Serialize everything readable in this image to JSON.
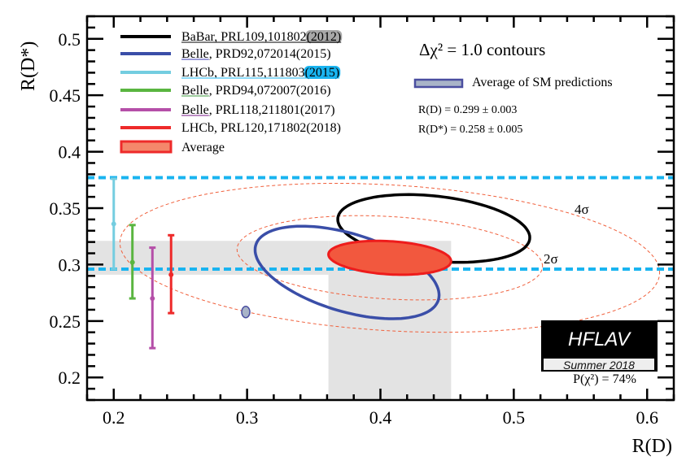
{
  "chart_data": {
    "type": "scatter",
    "xlabel": "R(D)",
    "ylabel": "R(D*)",
    "xlim": [
      0.18,
      0.62
    ],
    "ylim": [
      0.18,
      0.52
    ],
    "xticks": [
      "0.2",
      "0.3",
      "0.4",
      "0.5",
      "0.6"
    ],
    "yticks": [
      "0.2",
      "0.25",
      "0.3",
      "0.35",
      "0.4",
      "0.45",
      "0.5"
    ],
    "grid": false,
    "legend_placement": "top-left",
    "legend": [
      {
        "main": "BaBar, PRL109,101802",
        "year": "(2012)",
        "color": "#000000",
        "underline": "all",
        "highlight": "#a8a8a8"
      },
      {
        "main": "Belle",
        "rest": ", PRD92,072014(2015)",
        "color": "#3a4ea8",
        "underline": "main",
        "underline_color": "#3a3ab0"
      },
      {
        "main": "LHCb, PRL115,111803",
        "year": "(2015)",
        "color": "#74cde0",
        "underline": "all",
        "underline_color": "#19b4f0",
        "highlight": "#19b4f0"
      },
      {
        "main": "Belle",
        "rest": ", PRD94,072007(2016)",
        "color": "#5ab540",
        "underline": "main",
        "underline_color": "#3c9a3c"
      },
      {
        "main": "Belle",
        "rest": ", PRL118,211801(2017)",
        "color": "#b54fa8",
        "underline": "main",
        "underline_color": "#7a1a8a"
      },
      {
        "main": "LHCb, PRL120,171802(2018)",
        "color": "#ee2a2a"
      },
      {
        "main": "Average",
        "color": "#ee2a2a",
        "fill": "#f4876b",
        "box": true
      }
    ],
    "measurements_1d": [
      {
        "name": "LHCb 2015",
        "x": 0.2,
        "y": 0.336,
        "y_low": 0.296,
        "y_high": 0.376,
        "color": "#74cde0"
      },
      {
        "name": "Belle 2016",
        "x": 0.214,
        "y": 0.302,
        "y_low": 0.27,
        "y_high": 0.335,
        "color": "#5ab540"
      },
      {
        "name": "Belle 2017",
        "x": 0.229,
        "y": 0.27,
        "y_low": 0.226,
        "y_high": 0.315,
        "color": "#b54fa8"
      },
      {
        "name": "LHCb 2018",
        "x": 0.243,
        "y": 0.291,
        "y_low": 0.257,
        "y_high": 0.326,
        "color": "#ee2a2a"
      }
    ],
    "measurements_2d": [
      {
        "name": "BaBar 2012",
        "x": 0.44,
        "y": 0.332,
        "sigma_x": 0.072,
        "sigma_y": 0.03,
        "rho": -0.27,
        "color": "#000000"
      },
      {
        "name": "Belle 2015",
        "x": 0.375,
        "y": 0.293,
        "sigma_x": 0.069,
        "sigma_y": 0.041,
        "rho": -0.49,
        "color": "#3a4ea8"
      }
    ],
    "average": {
      "x": 0.407,
      "y": 0.306,
      "sigma_x": 0.046,
      "sigma_y": 0.015,
      "rho": -0.2,
      "fill": "#f2583e",
      "stroke": "#ee1c1c"
    },
    "sigma_contours": [
      {
        "label": "2σ",
        "color": "#f0603c"
      },
      {
        "label": "4σ",
        "color": "#f0603c"
      }
    ],
    "sm_prediction": {
      "x": 0.299,
      "y": 0.258,
      "sigma_x": 0.003,
      "sigma_y": 0.005,
      "fill": "#a9b4c8",
      "stroke": "#4a4ea0"
    },
    "lhcb_band_lines": {
      "y": [
        0.296,
        0.377
      ],
      "color": "#19b4f0"
    },
    "bands_color": "#e3e3e3",
    "annotations": {
      "contours_title": "Δχ² = 1.0 contours",
      "sm_legend": "Average of SM predictions",
      "sm_rd": "R(D) = 0.299 ± 0.003",
      "sm_rdstar": "R(D*) = 0.258 ± 0.005",
      "p_chi2": "P(χ²) = 74%"
    }
  },
  "logo": {
    "name": "HFLAV",
    "subtitle": "Summer 2018"
  }
}
